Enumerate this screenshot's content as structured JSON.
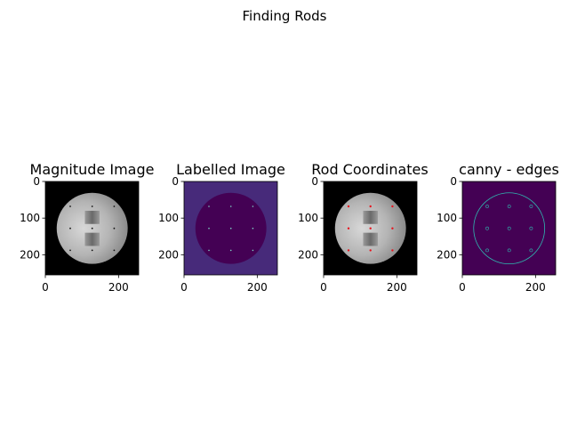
{
  "figure": {
    "suptitle": "Finding Rods"
  },
  "chart_data": [
    {
      "type": "image",
      "title": "Magnitude Image",
      "colormap": "gray",
      "xlim": [
        0,
        255
      ],
      "ylim": [
        255,
        0
      ],
      "xticks": [
        0,
        200
      ],
      "yticks": [
        0,
        100,
        200
      ],
      "phantom": {
        "center": [
          128,
          128
        ],
        "radius": 97
      },
      "rods": [
        [
          68,
          68
        ],
        [
          128,
          68
        ],
        [
          188,
          68
        ],
        [
          68,
          128
        ],
        [
          128,
          128
        ],
        [
          188,
          128
        ],
        [
          68,
          188
        ],
        [
          128,
          188
        ],
        [
          188,
          188
        ]
      ],
      "inner_blocks": [
        [
          108,
          80,
          40,
          36
        ],
        [
          108,
          140,
          40,
          36
        ]
      ]
    },
    {
      "type": "image",
      "title": "Labelled Image",
      "colormap": "viridis",
      "xlim": [
        0,
        255
      ],
      "ylim": [
        255,
        0
      ],
      "xticks": [
        0,
        200
      ],
      "yticks": [
        0,
        100,
        200
      ],
      "phantom": {
        "center": [
          128,
          128
        ],
        "radius": 97
      },
      "rods": [
        [
          68,
          68
        ],
        [
          128,
          68
        ],
        [
          188,
          68
        ],
        [
          68,
          128
        ],
        [
          128,
          128
        ],
        [
          188,
          128
        ],
        [
          68,
          188
        ],
        [
          128,
          188
        ],
        [
          188,
          188
        ]
      ],
      "colors": {
        "background": "#472a7a",
        "phantom": "#440154",
        "rod": "#7fd1c7"
      }
    },
    {
      "type": "image",
      "title": "Rod Coordinates",
      "colormap": "gray",
      "xlim": [
        0,
        255
      ],
      "ylim": [
        255,
        0
      ],
      "xticks": [
        0,
        200
      ],
      "yticks": [
        0,
        100,
        200
      ],
      "phantom": {
        "center": [
          128,
          128
        ],
        "radius": 97
      },
      "rods": [
        [
          68,
          68
        ],
        [
          128,
          68
        ],
        [
          188,
          68
        ],
        [
          68,
          128
        ],
        [
          128,
          128
        ],
        [
          188,
          128
        ],
        [
          68,
          188
        ],
        [
          128,
          188
        ],
        [
          188,
          188
        ]
      ],
      "inner_blocks": [
        [
          108,
          80,
          40,
          36
        ],
        [
          108,
          140,
          40,
          36
        ]
      ],
      "colors": {
        "marker": "#e8121c"
      }
    },
    {
      "type": "image",
      "title": "canny - edges",
      "colormap": "viridis",
      "xlim": [
        0,
        255
      ],
      "ylim": [
        255,
        0
      ],
      "xticks": [
        0,
        200
      ],
      "yticks": [
        0,
        100,
        200
      ],
      "phantom": {
        "center": [
          128,
          128
        ],
        "radius": 97
      },
      "rods": [
        [
          68,
          68
        ],
        [
          128,
          68
        ],
        [
          188,
          68
        ],
        [
          68,
          128
        ],
        [
          128,
          128
        ],
        [
          188,
          128
        ],
        [
          68,
          188
        ],
        [
          128,
          188
        ],
        [
          188,
          188
        ]
      ],
      "colors": {
        "background": "#440154",
        "edge": "#2fb7b0"
      }
    }
  ]
}
